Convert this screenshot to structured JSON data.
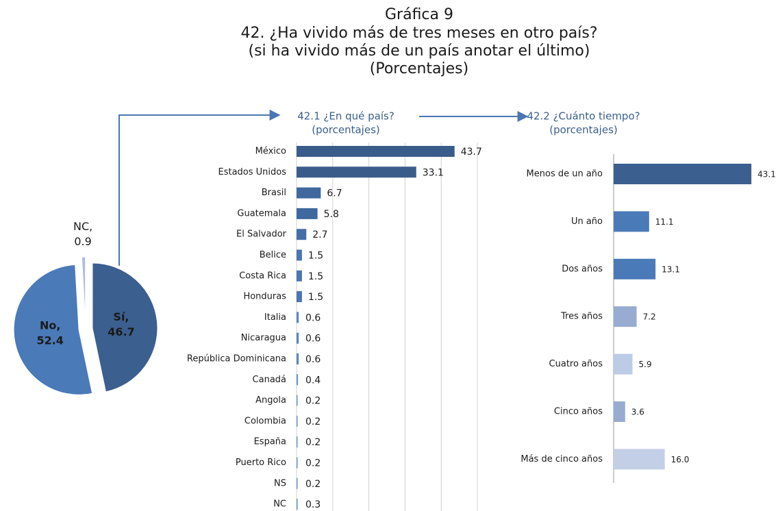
{
  "title": [
    "Gráfica 9",
    "42. ¿Ha vivido más de tres meses en otro país?",
    "(si ha vivido más de un país anotar el último)",
    "(Porcentajes)"
  ],
  "chart_data": [
    {
      "type": "pie",
      "categories": [
        "Sí,",
        "No,",
        "NC,"
      ],
      "values": [
        46.7,
        52.4,
        0.9
      ],
      "colors": [
        "#3b5f8e",
        "#4a7ab8",
        "#aebde0"
      ]
    },
    {
      "type": "bar",
      "title": [
        "42.1 ¿En qué país?",
        "(porcentajes)"
      ],
      "categories": [
        "México",
        "Estados Unidos",
        "Brasil",
        "Guatemala",
        "El Salvador",
        "Belice",
        "Costa Rica",
        "Honduras",
        "Italia",
        "Nicaragua",
        "República Dominicana",
        "Canadá",
        "Angola",
        "Colombia",
        "España",
        "Puerto Rico",
        "NS",
        "NC"
      ],
      "values": [
        43.7,
        33.1,
        6.7,
        5.8,
        2.7,
        1.5,
        1.5,
        1.5,
        0.6,
        0.6,
        0.6,
        0.4,
        0.2,
        0.2,
        0.2,
        0.2,
        0.2,
        0.3
      ],
      "colors": [
        "#3a5c8a",
        "#3a5c8a",
        "#41689e",
        "#41689e",
        "#466fa8",
        "#4a76b2",
        "#4a76b2",
        "#4a76b2",
        "#5a86c2",
        "#5a86c2",
        "#5a86c2",
        "#6a92c8",
        "#6a92c8",
        "#6a92c8",
        "#6a92c8",
        "#6a92c8",
        "#6a92c8",
        "#6a92c8"
      ],
      "xlim": [
        0,
        50
      ],
      "xticks": [
        0,
        10,
        20,
        30,
        40,
        50
      ],
      "grid": true
    },
    {
      "type": "bar",
      "title": [
        "42.2 ¿Cuánto tiempo?",
        "(porcentajes)"
      ],
      "categories": [
        "Menos de un año",
        "Un año",
        "Dos años",
        "Tres años",
        "Cuatro años",
        "Cinco años",
        "Más de cinco años"
      ],
      "values": [
        43.1,
        11.1,
        13.1,
        7.2,
        5.9,
        3.6,
        16
      ],
      "value_labels": [
        "43.1",
        "11.1",
        "13.1",
        "7.2",
        "5.9",
        "3.6",
        "16.0"
      ],
      "colors": [
        "#3b5f8e",
        "#4a7ab8",
        "#4a7ab8",
        "#98abd1",
        "#bccbe6",
        "#98abd1",
        "#c3cfe6"
      ],
      "xlim": [
        0,
        45
      ],
      "grid": false
    }
  ]
}
